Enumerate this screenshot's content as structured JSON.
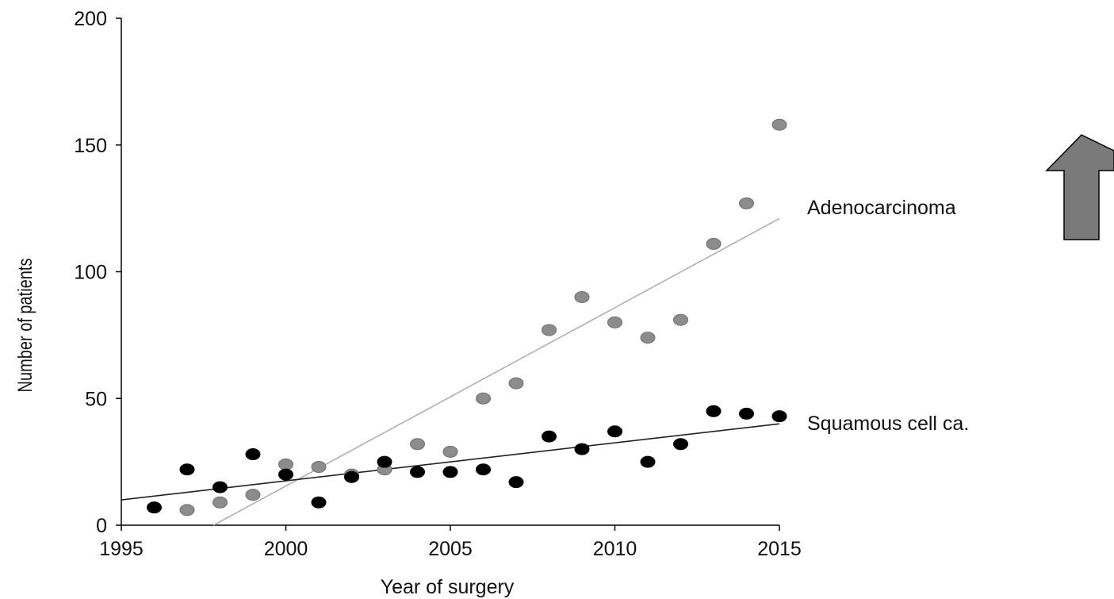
{
  "chart_data": {
    "type": "scatter",
    "title": "",
    "xlabel": "Year of surgery",
    "ylabel": "Number of patients",
    "xlim": [
      1995,
      2015
    ],
    "ylim": [
      0,
      200
    ],
    "x_ticks": [
      1995,
      2000,
      2005,
      2010,
      2015
    ],
    "y_ticks": [
      0,
      50,
      100,
      150,
      200
    ],
    "grid": false,
    "legend": "inline labels at right end of trend lines",
    "series": [
      {
        "name": "Adenocarcinoma",
        "color": "#8c8c8c",
        "line_color": "#b0b0b0",
        "points": [
          [
            1997,
            6
          ],
          [
            1998,
            9
          ],
          [
            1999,
            12
          ],
          [
            2000,
            24
          ],
          [
            2001,
            23
          ],
          [
            2002,
            20
          ],
          [
            2003,
            22
          ],
          [
            2004,
            32
          ],
          [
            2005,
            29
          ],
          [
            2006,
            50
          ],
          [
            2007,
            56
          ],
          [
            2008,
            77
          ],
          [
            2009,
            90
          ],
          [
            2010,
            80
          ],
          [
            2011,
            74
          ],
          [
            2012,
            81
          ],
          [
            2013,
            111
          ],
          [
            2014,
            127
          ],
          [
            2015,
            158
          ]
        ],
        "trend": [
          [
            1997.8,
            0
          ],
          [
            2015,
            121
          ]
        ]
      },
      {
        "name": "Squamous cell ca.",
        "color": "#000000",
        "line_color": "#222222",
        "points": [
          [
            1996,
            7
          ],
          [
            1997,
            22
          ],
          [
            1998,
            15
          ],
          [
            1999,
            28
          ],
          [
            2000,
            20
          ],
          [
            2001,
            9
          ],
          [
            2002,
            19
          ],
          [
            2003,
            25
          ],
          [
            2004,
            21
          ],
          [
            2005,
            21
          ],
          [
            2006,
            22
          ],
          [
            2007,
            17
          ],
          [
            2008,
            35
          ],
          [
            2009,
            30
          ],
          [
            2010,
            37
          ],
          [
            2011,
            25
          ],
          [
            2012,
            32
          ],
          [
            2013,
            45
          ],
          [
            2014,
            44
          ],
          [
            2015,
            43
          ]
        ],
        "trend": [
          [
            1995,
            10
          ],
          [
            2015,
            40
          ]
        ]
      }
    ],
    "annotations": [
      {
        "type": "arrow",
        "direction": "up",
        "color": "#7a7a7a"
      }
    ]
  }
}
